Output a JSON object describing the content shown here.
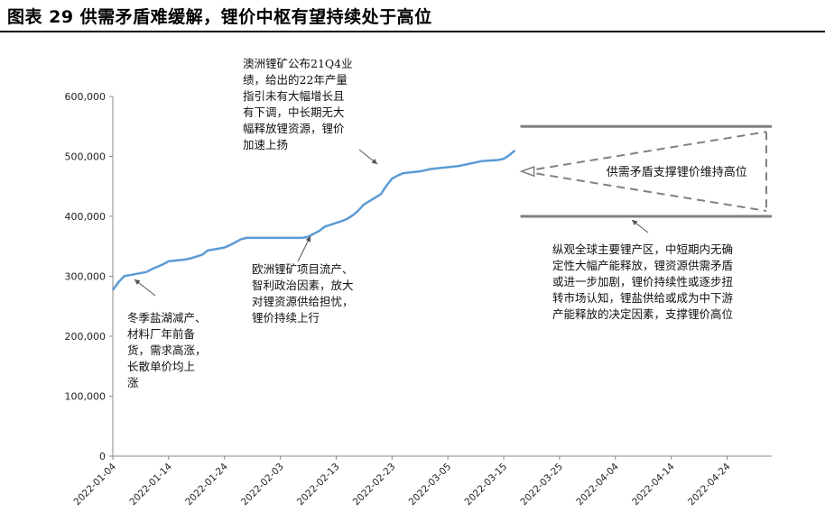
{
  "title": "图表 29 供需矛盾难缓解，锂价中枢有望持续处于高位",
  "chart_data": {
    "type": "line",
    "title": "",
    "xlabel": "",
    "ylabel": "",
    "ylim": [
      0,
      600000
    ],
    "y_ticks": [
      0,
      100000,
      200000,
      300000,
      400000,
      500000,
      600000
    ],
    "y_tick_labels": [
      "0",
      "100,000",
      "200,000",
      "300,000",
      "400,000",
      "500,000",
      "600,000"
    ],
    "x_range": [
      "2022-01-04",
      "2022-05-02"
    ],
    "x_tick_labels": [
      "2022-01-04",
      "2022-01-14",
      "2022-01-24",
      "2022-02-03",
      "2022-02-13",
      "2022-02-23",
      "2022-03-05",
      "2022-03-15",
      "2022-03-25",
      "2022-04-04",
      "2022-04-14",
      "2022-04-24"
    ],
    "grid": false,
    "series": [
      {
        "name": "",
        "color": "#5b9bd5",
        "x": [
          "2022-01-04",
          "2022-01-05",
          "2022-01-06",
          "2022-01-07",
          "2022-01-10",
          "2022-01-11",
          "2022-01-12",
          "2022-01-13",
          "2022-01-14",
          "2022-01-17",
          "2022-01-18",
          "2022-01-19",
          "2022-01-20",
          "2022-01-21",
          "2022-01-24",
          "2022-01-25",
          "2022-01-26",
          "2022-01-27",
          "2022-01-28",
          "2022-02-07",
          "2022-02-08",
          "2022-02-09",
          "2022-02-10",
          "2022-02-11",
          "2022-02-14",
          "2022-02-15",
          "2022-02-16",
          "2022-02-17",
          "2022-02-18",
          "2022-02-21",
          "2022-02-22",
          "2022-02-23",
          "2022-02-24",
          "2022-02-25",
          "2022-02-28",
          "2022-03-01",
          "2022-03-02",
          "2022-03-03",
          "2022-03-04",
          "2022-03-07",
          "2022-03-08",
          "2022-03-09",
          "2022-03-10",
          "2022-03-11",
          "2022-03-14",
          "2022-03-15",
          "2022-03-16",
          "2022-03-17"
        ],
        "values": [
          277000,
          290000,
          300000,
          302000,
          307000,
          312000,
          316000,
          320000,
          325000,
          328000,
          330000,
          333000,
          336000,
          343000,
          348000,
          352000,
          357000,
          362000,
          364000,
          364000,
          366000,
          371000,
          376000,
          383000,
          392000,
          396000,
          402000,
          410000,
          420000,
          437000,
          451000,
          463000,
          468000,
          472000,
          475000,
          477000,
          479000,
          480000,
          481000,
          484000,
          486000,
          488000,
          490000,
          492000,
          494000,
          496000,
          502000,
          510000
        ]
      }
    ],
    "band": {
      "upper": 550000,
      "lower": 400000,
      "x_start": "2022-03-18",
      "x_end": "2022-05-02",
      "label": "供需矛盾支撑锂价维持高位"
    },
    "annotations": [
      {
        "id": "winter",
        "text": "冬季盐湖减产、\n材料厂年前备\n货，需求高涨，\n长散单价均上\n涨"
      },
      {
        "id": "europe",
        "text": "欧洲锂矿项目流产、\n智利政治因素，放大\n对锂资源供给担忧，\n锂价持续上行"
      },
      {
        "id": "australia",
        "text": "澳洲锂矿公布21Q4业\n绩，给出的22年产量\n指引未有大幅增长且\n有下调，中长期无大\n幅释放锂资源，锂价\n加速上扬"
      },
      {
        "id": "global",
        "text": "纵观全球主要锂产区，中短期内无确\n定性大幅产能释放，锂资源供需矛盾\n或进一步加剧，锂价持续性或逐步扭\n转市场认知，锂盐供给或成为中下游\n产能释放的决定因素，支撑锂价高位"
      }
    ]
  }
}
